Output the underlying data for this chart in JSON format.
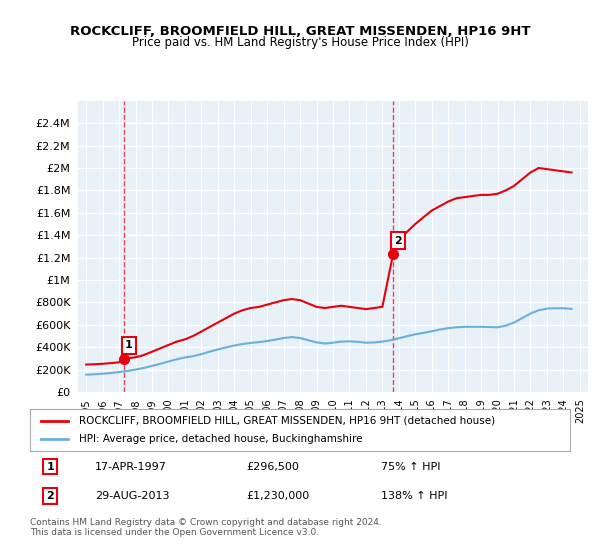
{
  "title": "ROCKCLIFF, BROOMFIELD HILL, GREAT MISSENDEN, HP16 9HT",
  "subtitle": "Price paid vs. HM Land Registry's House Price Index (HPI)",
  "legend_line1": "ROCKCLIFF, BROOMFIELD HILL, GREAT MISSENDEN, HP16 9HT (detached house)",
  "legend_line2": "HPI: Average price, detached house, Buckinghamshire",
  "footnote": "Contains HM Land Registry data © Crown copyright and database right 2024.\nThis data is licensed under the Open Government Licence v3.0.",
  "sale1_label": "1",
  "sale1_date": "17-APR-1997",
  "sale1_price": "£296,500",
  "sale1_hpi": "75% ↑ HPI",
  "sale2_label": "2",
  "sale2_date": "29-AUG-2013",
  "sale2_price": "£1,230,000",
  "sale2_hpi": "138% ↑ HPI",
  "sale1_x": 1997.3,
  "sale1_y": 296500,
  "sale2_x": 2013.65,
  "sale2_y": 1230000,
  "red_color": "#e8000d",
  "blue_color": "#6ab0de",
  "bg_color": "#e8f0f8",
  "grid_color": "#ffffff",
  "ylim": [
    0,
    2600000
  ],
  "xlim": [
    1994.5,
    2025.5
  ],
  "red_x": [
    1995.0,
    1995.5,
    1996.0,
    1996.5,
    1997.0,
    1997.3,
    1997.5,
    1998.0,
    1998.5,
    1999.0,
    1999.5,
    2000.0,
    2000.5,
    2001.0,
    2001.5,
    2002.0,
    2002.5,
    2003.0,
    2003.5,
    2004.0,
    2004.5,
    2005.0,
    2005.5,
    2006.0,
    2006.5,
    2007.0,
    2007.5,
    2008.0,
    2008.5,
    2009.0,
    2009.5,
    2010.0,
    2010.5,
    2011.0,
    2011.5,
    2012.0,
    2012.5,
    2013.0,
    2013.65,
    2014.0,
    2014.5,
    2015.0,
    2015.5,
    2016.0,
    2016.5,
    2017.0,
    2017.5,
    2018.0,
    2018.5,
    2019.0,
    2019.5,
    2020.0,
    2020.5,
    2021.0,
    2021.5,
    2022.0,
    2022.5,
    2023.0,
    2023.5,
    2024.0,
    2024.5
  ],
  "red_y": [
    245000,
    248000,
    252000,
    258000,
    265000,
    296500,
    300000,
    310000,
    330000,
    360000,
    390000,
    420000,
    450000,
    470000,
    500000,
    540000,
    580000,
    620000,
    660000,
    700000,
    730000,
    750000,
    760000,
    780000,
    800000,
    820000,
    830000,
    820000,
    790000,
    760000,
    750000,
    760000,
    770000,
    760000,
    750000,
    740000,
    750000,
    760000,
    1230000,
    1350000,
    1430000,
    1500000,
    1560000,
    1620000,
    1660000,
    1700000,
    1730000,
    1740000,
    1750000,
    1760000,
    1760000,
    1770000,
    1800000,
    1840000,
    1900000,
    1960000,
    2000000,
    1990000,
    1980000,
    1970000,
    1960000
  ],
  "blue_x": [
    1995.0,
    1995.5,
    1996.0,
    1996.5,
    1997.0,
    1997.5,
    1998.0,
    1998.5,
    1999.0,
    1999.5,
    2000.0,
    2000.5,
    2001.0,
    2001.5,
    2002.0,
    2002.5,
    2003.0,
    2003.5,
    2004.0,
    2004.5,
    2005.0,
    2005.5,
    2006.0,
    2006.5,
    2007.0,
    2007.5,
    2008.0,
    2008.5,
    2009.0,
    2009.5,
    2010.0,
    2010.5,
    2011.0,
    2011.5,
    2012.0,
    2012.5,
    2013.0,
    2013.5,
    2014.0,
    2014.5,
    2015.0,
    2015.5,
    2016.0,
    2016.5,
    2017.0,
    2017.5,
    2018.0,
    2018.5,
    2019.0,
    2019.5,
    2020.0,
    2020.5,
    2021.0,
    2021.5,
    2022.0,
    2022.5,
    2023.0,
    2023.5,
    2024.0,
    2024.5
  ],
  "blue_y": [
    155000,
    158000,
    163000,
    170000,
    178000,
    188000,
    200000,
    215000,
    233000,
    252000,
    272000,
    292000,
    308000,
    320000,
    338000,
    360000,
    380000,
    398000,
    415000,
    428000,
    438000,
    445000,
    455000,
    468000,
    482000,
    490000,
    482000,
    462000,
    443000,
    433000,
    440000,
    450000,
    452000,
    448000,
    440000,
    442000,
    450000,
    462000,
    480000,
    498000,
    515000,
    528000,
    542000,
    558000,
    570000,
    578000,
    582000,
    582000,
    582000,
    580000,
    578000,
    592000,
    620000,
    660000,
    700000,
    730000,
    745000,
    748000,
    748000,
    742000
  ]
}
